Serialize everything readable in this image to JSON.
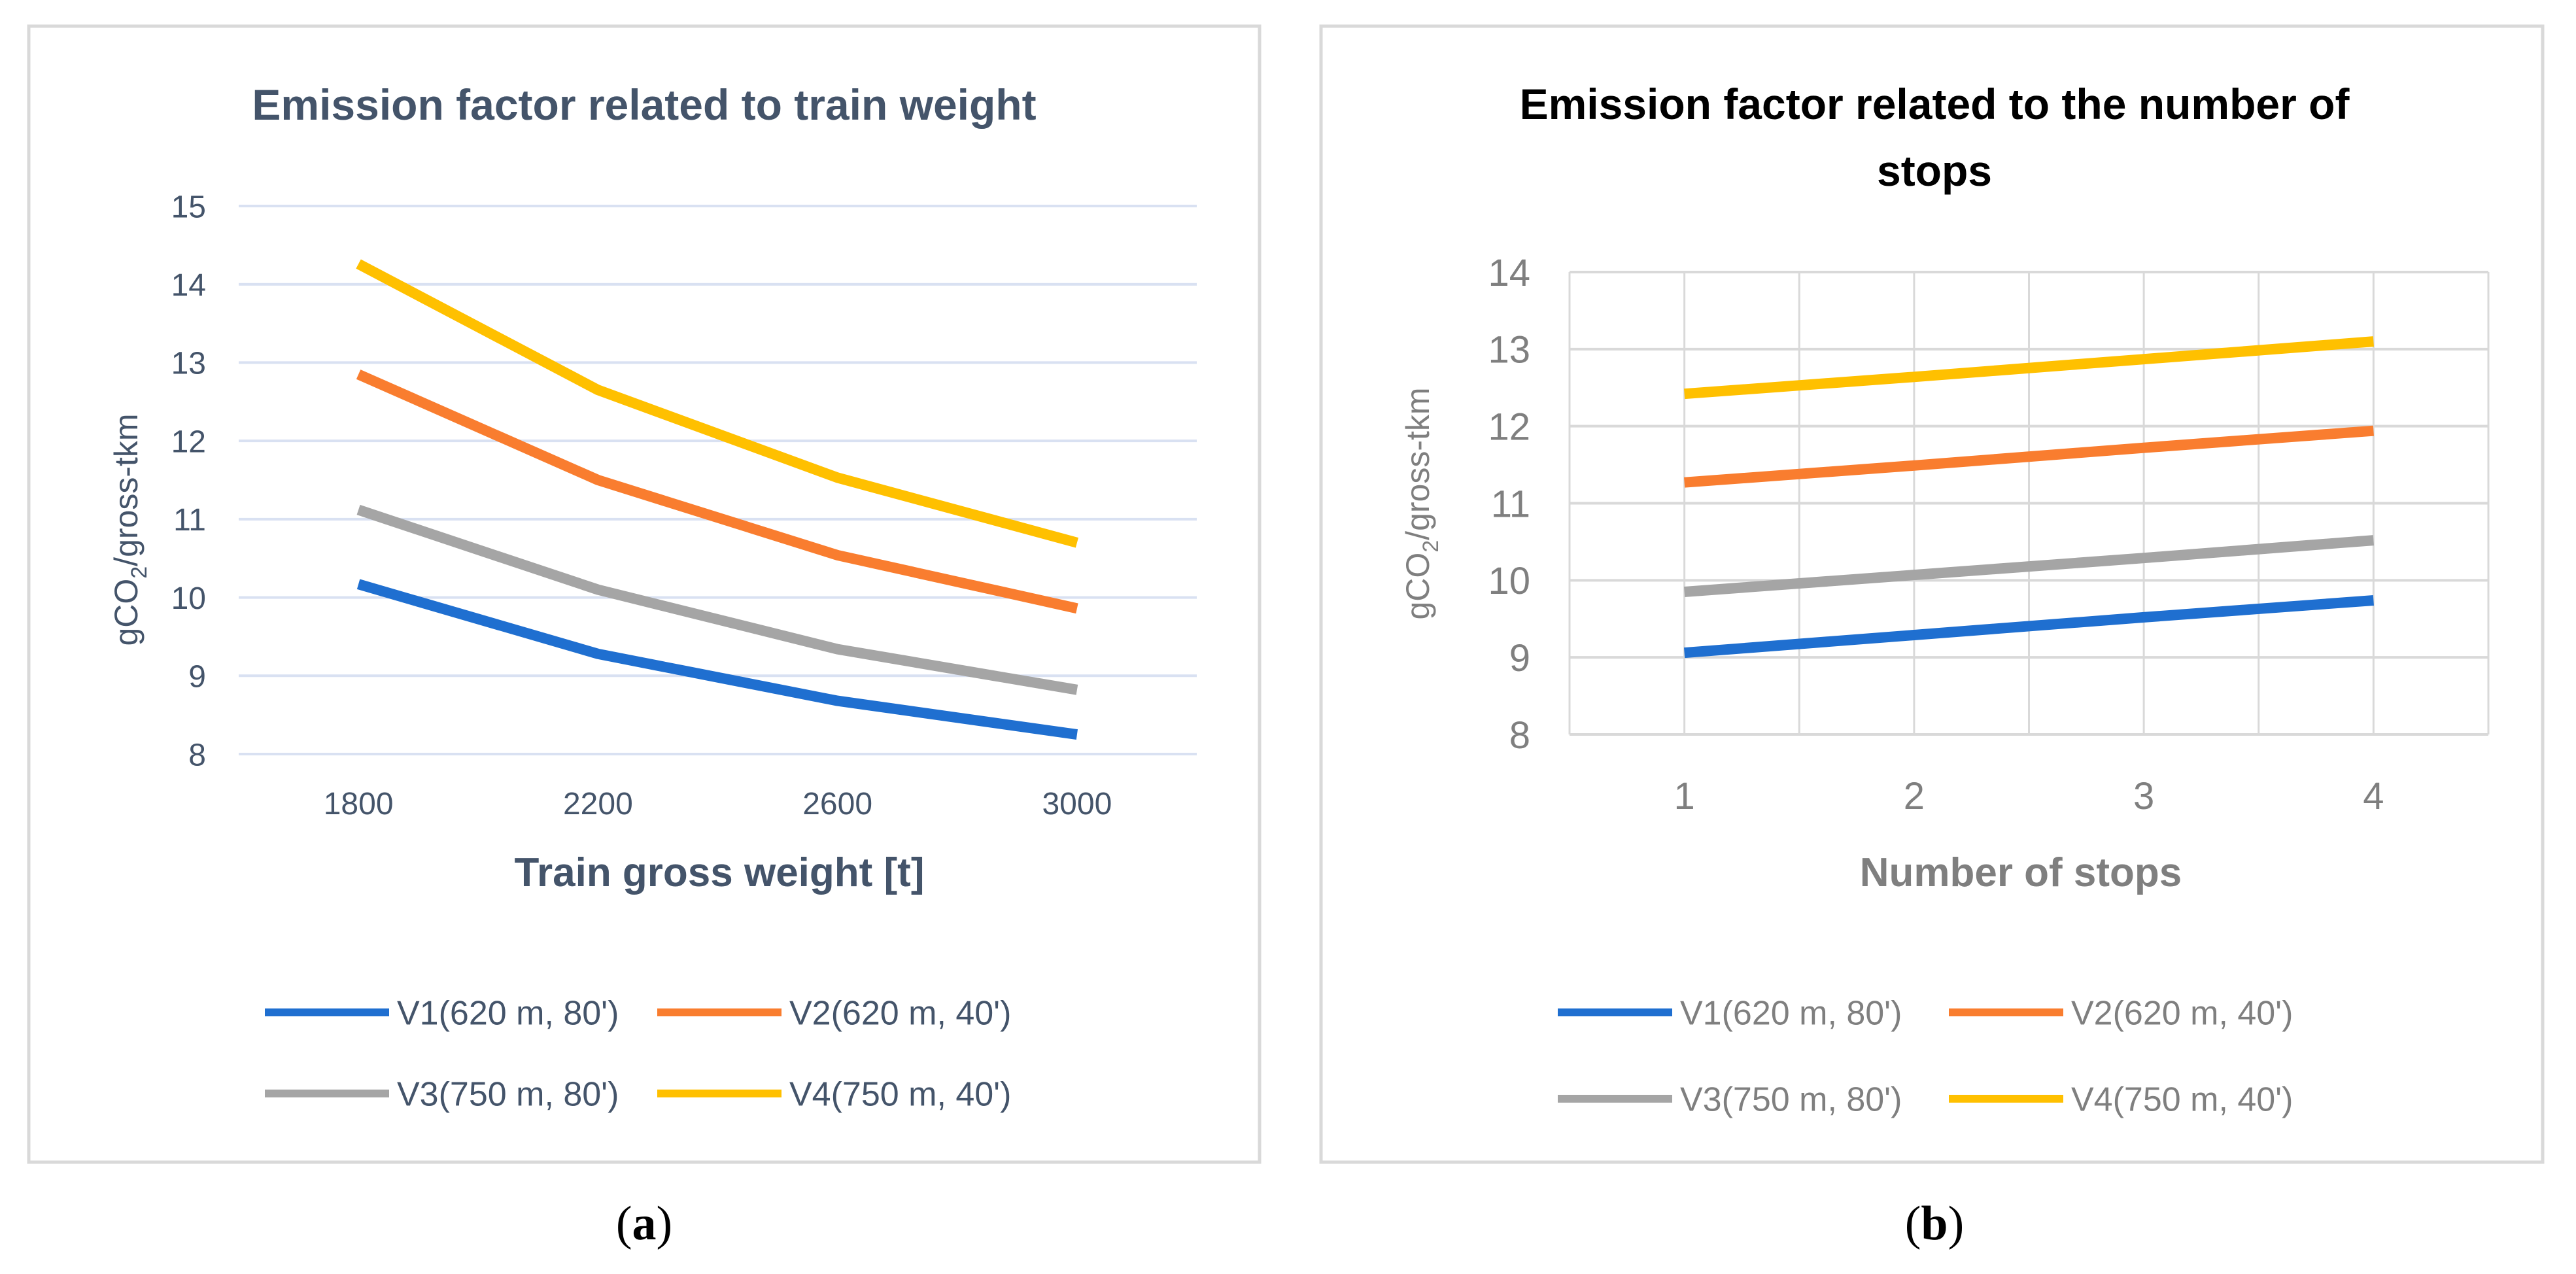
{
  "chart_data": [
    {
      "type": "line",
      "title": "Emission factor related to train weight",
      "ylabel_main": "gCO",
      "ylabel_sub": "2",
      "ylabel_rest": "/gross-tkm",
      "xlabel": "Train gross weight [t]",
      "categories": [
        "1800",
        "2200",
        "2600",
        "3000"
      ],
      "yticks": [
        "8",
        "9",
        "10",
        "11",
        "12",
        "13",
        "14",
        "15"
      ],
      "ylim": [
        8,
        15
      ],
      "grid": true,
      "legend_position": "bottom",
      "text_color": "#44546A",
      "series": [
        {
          "name": "V1(620 m, 80')",
          "color": "#1F6FD0",
          "values": [
            10.17,
            9.28,
            8.68,
            8.25
          ]
        },
        {
          "name": "V2(620 m, 40')",
          "color": "#F97D2F",
          "values": [
            12.85,
            11.5,
            10.54,
            9.86
          ]
        },
        {
          "name": "V3(750 m, 80')",
          "color": "#A5A5A5",
          "values": [
            11.12,
            10.1,
            9.34,
            8.82
          ]
        },
        {
          "name": "V4(750 m, 40')",
          "color": "#FFC000",
          "values": [
            14.26,
            12.65,
            11.53,
            10.7
          ]
        }
      ],
      "caption": "(a)"
    },
    {
      "type": "line",
      "title_line1": "Emission factor related to the number of",
      "title_line2": "stops",
      "ylabel_main": "gCO",
      "ylabel_sub": "2",
      "ylabel_rest": "/gross-tkm",
      "xlabel": "Number of stops",
      "categories": [
        "1",
        "2",
        "3",
        "4"
      ],
      "yticks": [
        "8",
        "9",
        "10",
        "11",
        "12",
        "13",
        "14"
      ],
      "ylim": [
        8,
        14
      ],
      "grid": true,
      "legend_position": "bottom",
      "text_color": "#7F7F7F",
      "series": [
        {
          "name": "V1(620 m, 80')",
          "color": "#1F6FD0",
          "values": [
            9.06,
            9.29,
            9.52,
            9.74
          ]
        },
        {
          "name": "V2(620 m, 40')",
          "color": "#F97D2F",
          "values": [
            11.27,
            11.49,
            11.72,
            11.94
          ]
        },
        {
          "name": "V3(750 m, 80')",
          "color": "#A5A5A5",
          "values": [
            9.85,
            10.07,
            10.29,
            10.52
          ]
        },
        {
          "name": "V4(750 m, 40')",
          "color": "#FFC000",
          "values": [
            12.42,
            12.64,
            12.87,
            13.1
          ]
        }
      ],
      "caption": "(b)"
    }
  ]
}
